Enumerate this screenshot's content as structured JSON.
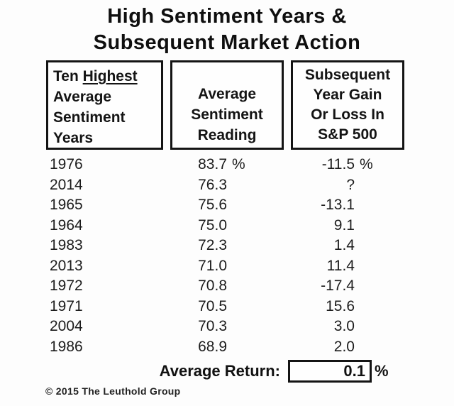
{
  "title": {
    "line1": "High Sentiment Years &",
    "line2": "Subsequent Market Action"
  },
  "headers": {
    "col1": {
      "pre": "Ten ",
      "underlined": "Highest",
      "line2": "Average",
      "line3": "Sentiment",
      "line4": "Years"
    },
    "col2": {
      "line1": "Average",
      "line2": "Sentiment",
      "line3": "Reading"
    },
    "col3": {
      "line1": "Subsequent",
      "line2": "Year Gain",
      "line3": "Or Loss In",
      "line4": "S&P 500"
    }
  },
  "table": {
    "rows": [
      {
        "year": "1976",
        "sentiment": "83.7",
        "sentiment_unit": "%",
        "subsequent_return": "-11.5",
        "return_unit": "%"
      },
      {
        "year": "2014",
        "sentiment": "76.3",
        "sentiment_unit": "",
        "subsequent_return": "?",
        "return_unit": ""
      },
      {
        "year": "1965",
        "sentiment": "75.6",
        "sentiment_unit": "",
        "subsequent_return": "-13.1",
        "return_unit": ""
      },
      {
        "year": "1964",
        "sentiment": "75.0",
        "sentiment_unit": "",
        "subsequent_return": "9.1",
        "return_unit": ""
      },
      {
        "year": "1983",
        "sentiment": "72.3",
        "sentiment_unit": "",
        "subsequent_return": "1.4",
        "return_unit": ""
      },
      {
        "year": "2013",
        "sentiment": "71.0",
        "sentiment_unit": "",
        "subsequent_return": "11.4",
        "return_unit": ""
      },
      {
        "year": "1972",
        "sentiment": "70.8",
        "sentiment_unit": "",
        "subsequent_return": "-17.4",
        "return_unit": ""
      },
      {
        "year": "1971",
        "sentiment": "70.5",
        "sentiment_unit": "",
        "subsequent_return": "15.6",
        "return_unit": ""
      },
      {
        "year": "2004",
        "sentiment": "70.3",
        "sentiment_unit": "",
        "subsequent_return": "3.0",
        "return_unit": ""
      },
      {
        "year": "1986",
        "sentiment": "68.9",
        "sentiment_unit": "",
        "subsequent_return": "2.0",
        "return_unit": ""
      }
    ]
  },
  "summary": {
    "label": "Average Return:",
    "value": "0.1",
    "unit": "%"
  },
  "footer": "© 2015 The Leuthold Group",
  "colors": {
    "text": "#1b1b1b",
    "border": "#141414",
    "background": "#fdfdfd"
  },
  "chart_data": {
    "type": "table",
    "title": "High Sentiment Years & Subsequent Market Action",
    "columns": [
      "Ten Highest Average Sentiment Years",
      "Average Sentiment Reading (%)",
      "Subsequent Year Gain Or Loss In S&P 500 (%)"
    ],
    "years": [
      "1976",
      "2014",
      "1965",
      "1964",
      "1983",
      "2013",
      "1972",
      "1971",
      "2004",
      "1986"
    ],
    "sentiment_readings": [
      83.7,
      76.3,
      75.6,
      75.0,
      72.3,
      71.0,
      70.8,
      70.5,
      70.3,
      68.9
    ],
    "subsequent_returns": [
      -11.5,
      "?",
      -13.1,
      9.1,
      1.4,
      11.4,
      -17.4,
      15.6,
      3.0,
      2.0
    ],
    "average_return": 0.1,
    "source": "© 2015 The Leuthold Group"
  }
}
